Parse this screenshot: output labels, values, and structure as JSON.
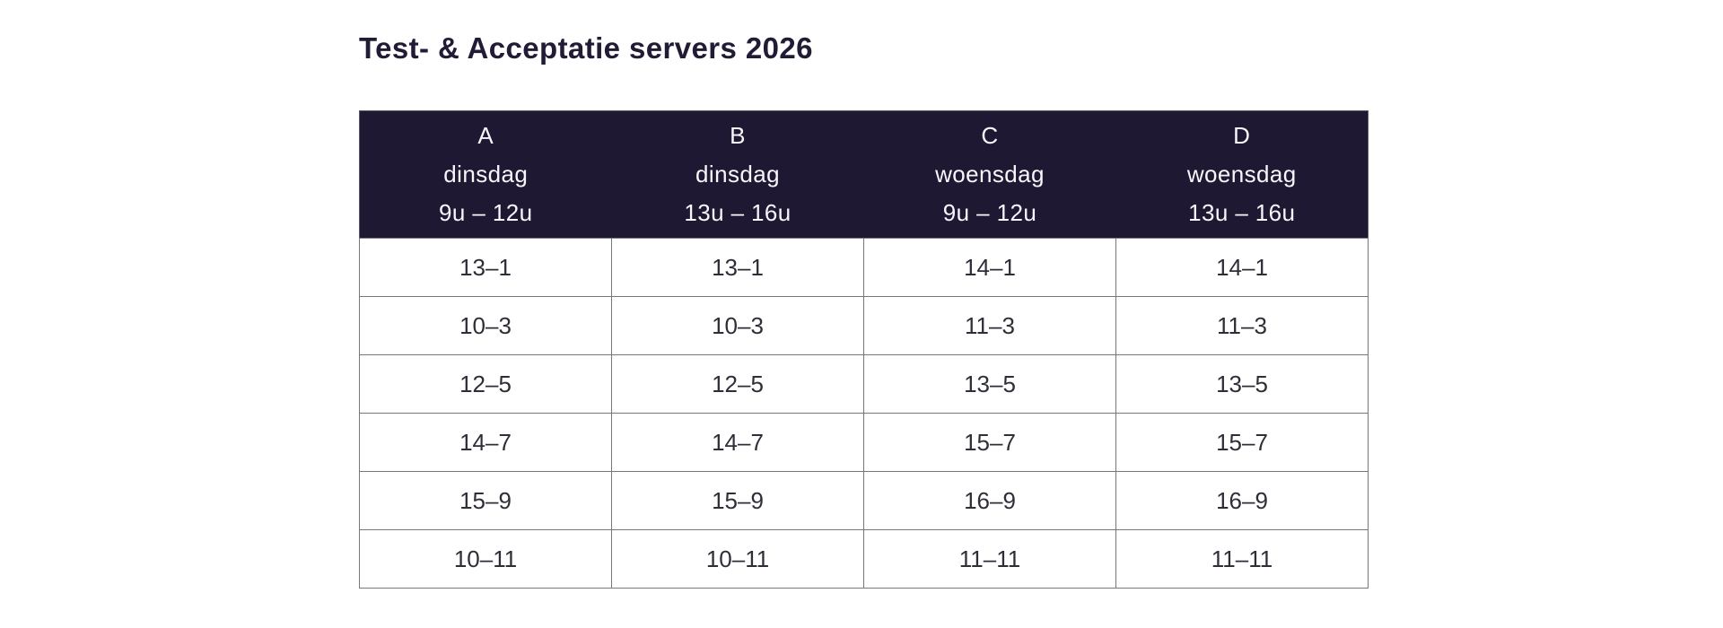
{
  "title": "Test- & Acceptatie servers 2026",
  "theme": {
    "page_bg": "#ffffff",
    "title_color": "#221b36",
    "header_bg": "#1f1833",
    "header_text": "#f7f6fa",
    "body_text": "#2e2e38",
    "grid_line": "#77777f",
    "outer_border": "#5a5a62"
  },
  "table": {
    "columns": [
      {
        "letter": "A",
        "day": "dinsdag",
        "time": "9u – 12u"
      },
      {
        "letter": "B",
        "day": "dinsdag",
        "time": "13u – 16u"
      },
      {
        "letter": "C",
        "day": "woensdag",
        "time": "9u – 12u"
      },
      {
        "letter": "D",
        "day": "woensdag",
        "time": "13u – 16u"
      }
    ],
    "rows": [
      [
        "13–1",
        "13–1",
        "14–1",
        "14–1"
      ],
      [
        "10–3",
        "10–3",
        "11–3",
        "11–3"
      ],
      [
        "12–5",
        "12–5",
        "13–5",
        "13–5"
      ],
      [
        "14–7",
        "14–7",
        "15–7",
        "15–7"
      ],
      [
        "15–9",
        "15–9",
        "16–9",
        "16–9"
      ],
      [
        "10–11",
        "10–11",
        "11–11",
        "11–11"
      ]
    ]
  }
}
